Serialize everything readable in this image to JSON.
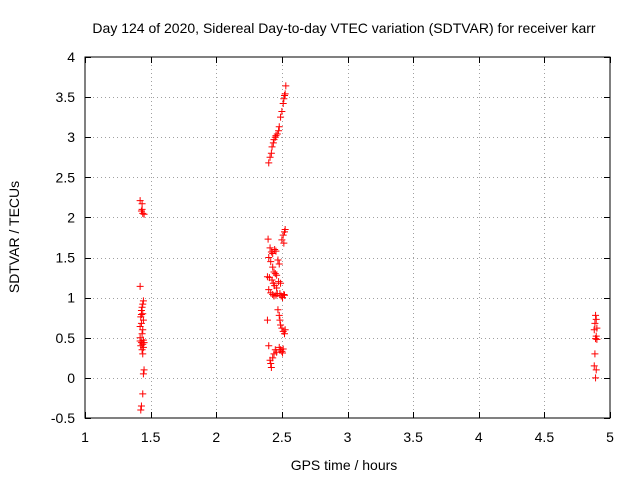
{
  "chart_data": {
    "type": "scatter",
    "title": "Day 124 of 2020, Sidereal Day-to-day VTEC variation (SDTVAR) for receiver karr",
    "xlabel": "GPS time / hours",
    "ylabel": "SDTVAR / TECUs",
    "xlim": [
      1,
      5
    ],
    "ylim": [
      -0.5,
      4
    ],
    "xticks": [
      1,
      1.5,
      2,
      2.5,
      3,
      3.5,
      4,
      4.5,
      5
    ],
    "xtick_labels": [
      "1",
      "1.5",
      "2",
      "2.5",
      "3",
      "3.5",
      "4",
      "4.5",
      "5"
    ],
    "yticks": [
      -0.5,
      0,
      0.5,
      1,
      1.5,
      2,
      2.5,
      3,
      3.5,
      4
    ],
    "ytick_labels": [
      "-0.5",
      "0",
      "0.5",
      "1",
      "1.5",
      "2",
      "2.5",
      "3",
      "3.5",
      "4"
    ],
    "grid": true,
    "marker": "+",
    "marker_color": "#ff0000",
    "series": [
      {
        "name": "SDTVAR",
        "points": [
          [
            1.42,
            2.21
          ],
          [
            1.435,
            2.17
          ],
          [
            1.43,
            2.08
          ],
          [
            1.44,
            2.05
          ],
          [
            1.45,
            2.04
          ],
          [
            1.435,
            2.1
          ],
          [
            1.42,
            1.14
          ],
          [
            1.445,
            0.96
          ],
          [
            1.44,
            0.92
          ],
          [
            1.435,
            0.88
          ],
          [
            1.43,
            0.84
          ],
          [
            1.44,
            0.8
          ],
          [
            1.425,
            0.76
          ],
          [
            1.445,
            0.72
          ],
          [
            1.43,
            0.68
          ],
          [
            1.42,
            0.64
          ],
          [
            1.44,
            0.6
          ],
          [
            1.435,
            0.55
          ],
          [
            1.42,
            0.5
          ],
          [
            1.445,
            0.47
          ],
          [
            1.43,
            0.44
          ],
          [
            1.44,
            0.42
          ],
          [
            1.425,
            0.4
          ],
          [
            1.445,
            0.38
          ],
          [
            1.435,
            0.35
          ],
          [
            1.44,
            0.3
          ],
          [
            1.42,
            0.46
          ],
          [
            1.45,
            0.44
          ],
          [
            1.43,
            0.79
          ],
          [
            1.45,
            0.1
          ],
          [
            1.445,
            0.05
          ],
          [
            1.44,
            -0.2
          ],
          [
            1.43,
            -0.35
          ],
          [
            1.425,
            -0.4
          ],
          [
            2.395,
            1.73
          ],
          [
            2.41,
            1.62
          ],
          [
            2.42,
            1.57
          ],
          [
            2.43,
            1.55
          ],
          [
            2.445,
            1.6
          ],
          [
            2.455,
            1.58
          ],
          [
            2.4,
            1.5
          ],
          [
            2.415,
            1.45
          ],
          [
            2.43,
            1.38
          ],
          [
            2.44,
            1.32
          ],
          [
            2.45,
            1.3
          ],
          [
            2.46,
            1.28
          ],
          [
            2.39,
            1.26
          ],
          [
            2.405,
            1.25
          ],
          [
            2.425,
            1.22
          ],
          [
            2.435,
            1.18
          ],
          [
            2.445,
            1.15
          ],
          [
            2.46,
            1.12
          ],
          [
            2.4,
            1.1
          ],
          [
            2.415,
            1.06
          ],
          [
            2.43,
            1.04
          ],
          [
            2.44,
            1.02
          ],
          [
            2.455,
            1.03
          ],
          [
            2.465,
            1.05
          ],
          [
            2.47,
            1.47
          ],
          [
            2.48,
            1.42
          ],
          [
            2.475,
            1.2
          ],
          [
            2.49,
            1.18
          ],
          [
            2.485,
            1.05
          ],
          [
            2.495,
            1.02
          ],
          [
            2.505,
            1.0
          ],
          [
            2.515,
            1.04
          ],
          [
            2.52,
            1.03
          ],
          [
            2.5,
            1.72
          ],
          [
            2.51,
            1.78
          ],
          [
            2.52,
            1.82
          ],
          [
            2.525,
            1.85
          ],
          [
            2.515,
            1.68
          ],
          [
            2.47,
            0.85
          ],
          [
            2.48,
            0.78
          ],
          [
            2.485,
            0.72
          ],
          [
            2.49,
            0.66
          ],
          [
            2.5,
            0.62
          ],
          [
            2.51,
            0.58
          ],
          [
            2.52,
            0.55
          ],
          [
            2.525,
            0.6
          ],
          [
            2.39,
            0.72
          ],
          [
            2.4,
            0.4
          ],
          [
            2.41,
            0.22
          ],
          [
            2.415,
            0.18
          ],
          [
            2.42,
            0.13
          ],
          [
            2.43,
            0.25
          ],
          [
            2.44,
            0.3
          ],
          [
            2.45,
            0.35
          ],
          [
            2.46,
            0.32
          ],
          [
            2.48,
            0.38
          ],
          [
            2.49,
            0.35
          ],
          [
            2.5,
            0.33
          ],
          [
            2.505,
            0.31
          ],
          [
            2.51,
            0.36
          ],
          [
            2.4,
            2.68
          ],
          [
            2.41,
            2.75
          ],
          [
            2.42,
            2.8
          ],
          [
            2.425,
            2.88
          ],
          [
            2.435,
            2.93
          ],
          [
            2.44,
            2.97
          ],
          [
            2.45,
            3.0
          ],
          [
            2.455,
            3.02
          ],
          [
            2.465,
            3.04
          ],
          [
            2.475,
            3.08
          ],
          [
            2.48,
            3.13
          ],
          [
            2.49,
            3.25
          ],
          [
            2.5,
            3.32
          ],
          [
            2.51,
            3.42
          ],
          [
            2.515,
            3.48
          ],
          [
            2.52,
            3.52
          ],
          [
            2.525,
            3.54
          ],
          [
            2.53,
            3.64
          ],
          [
            4.89,
            0.78
          ],
          [
            4.895,
            0.73
          ],
          [
            4.885,
            0.68
          ],
          [
            4.9,
            0.62
          ],
          [
            4.88,
            0.6
          ],
          [
            4.895,
            0.52
          ],
          [
            4.89,
            0.49
          ],
          [
            4.9,
            0.48
          ],
          [
            4.885,
            0.3
          ],
          [
            4.88,
            0.15
          ],
          [
            4.895,
            0.1
          ],
          [
            4.89,
            0.0
          ]
        ]
      }
    ]
  }
}
